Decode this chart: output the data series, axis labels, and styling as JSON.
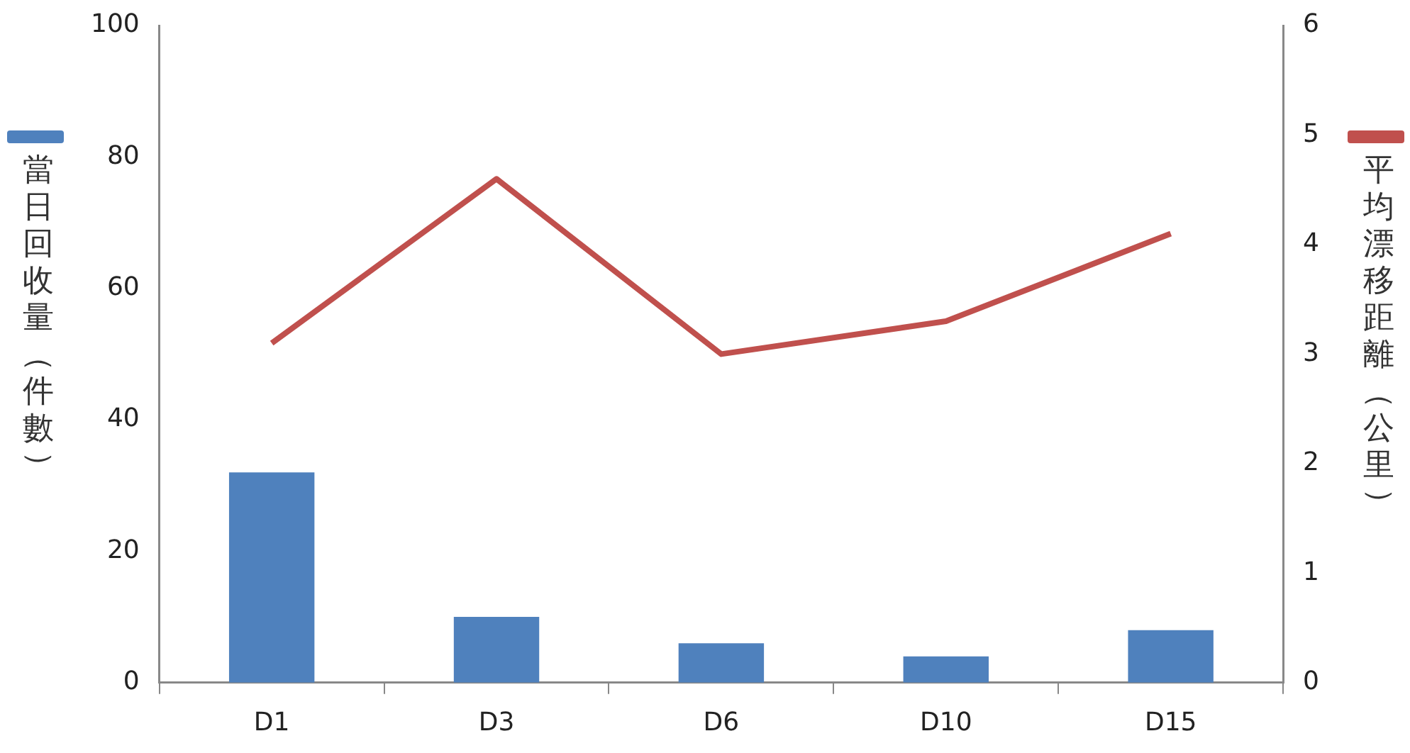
{
  "chart_data": {
    "type": "bar",
    "ylabel": "當日回收量（件數）",
    "y2label": "平均漂移距離（公里）",
    "categories": [
      "D1",
      "D3",
      "D6",
      "D10",
      "D15"
    ],
    "series": [
      {
        "color": "#4f81bd",
        "values": [
          32,
          10,
          6,
          4,
          8
        ]
      },
      {
        "type": "line",
        "axis": "y2",
        "color": "#c0504d",
        "values": [
          3.1,
          4.6,
          3.0,
          3.3,
          4.1
        ]
      }
    ],
    "ylim": [
      0,
      100
    ],
    "yticks": [
      0,
      20,
      40,
      60,
      80,
      100
    ],
    "y2lim": [
      0,
      6
    ],
    "y2ticks": [
      0,
      1,
      2,
      3,
      4,
      5,
      6
    ],
    "grid": false,
    "legend": false,
    "marker": "none"
  }
}
